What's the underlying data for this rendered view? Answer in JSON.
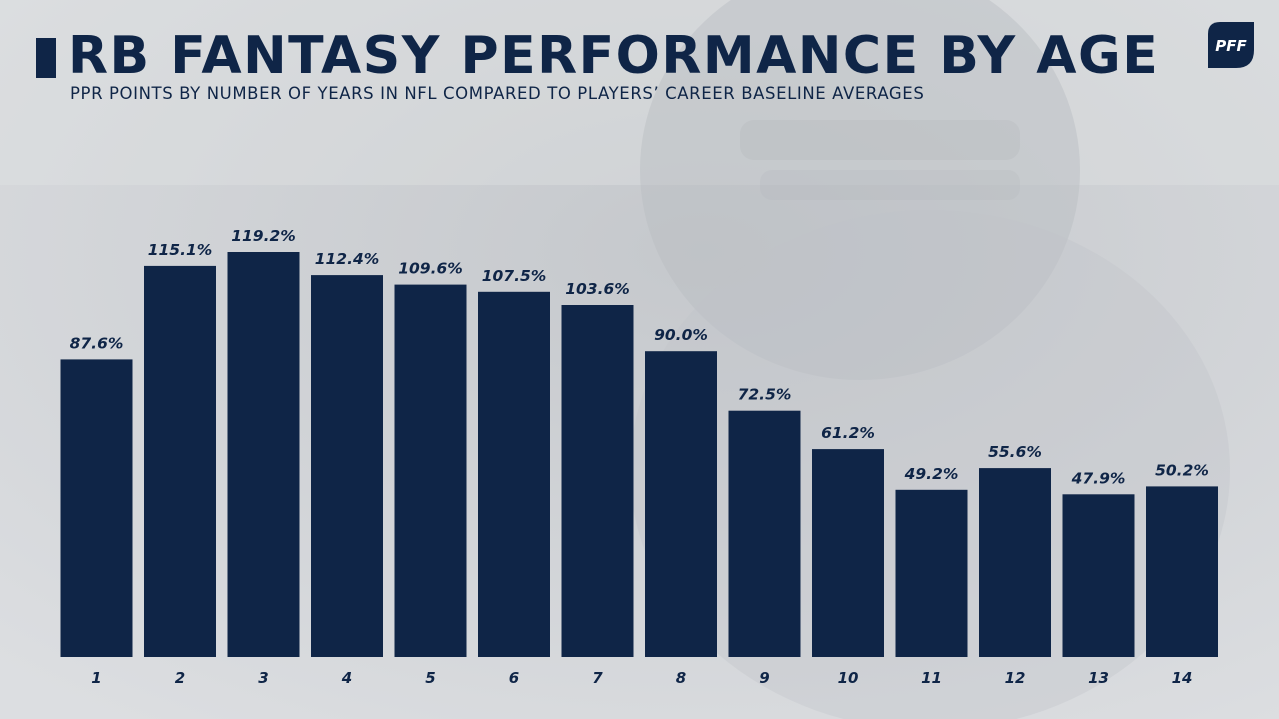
{
  "header": {
    "title": "RB FANTASY PERFORMANCE BY AGE",
    "subtitle": "PPR POINTS BY NUMBER OF YEARS IN NFL COMPARED TO PLAYERS’ CAREER BASELINE AVERAGES",
    "logo_text": "PFF"
  },
  "colors": {
    "bar": "#0f2547",
    "text": "#0f2547",
    "background": "#d3d5d8"
  },
  "chart_data": {
    "type": "bar",
    "title": "RB FANTASY PERFORMANCE BY AGE",
    "subtitle": "PPR POINTS BY NUMBER OF YEARS IN NFL COMPARED TO PLAYERS’ CAREER BASELINE AVERAGES",
    "xlabel": "",
    "ylabel": "",
    "categories": [
      "1",
      "2",
      "3",
      "4",
      "5",
      "6",
      "7",
      "8",
      "9",
      "10",
      "11",
      "12",
      "13",
      "14"
    ],
    "values": [
      87.6,
      115.1,
      119.2,
      112.4,
      109.6,
      107.5,
      103.6,
      90.0,
      72.5,
      61.2,
      49.2,
      55.6,
      47.9,
      50.2
    ],
    "value_labels": [
      "87.6%",
      "115.1%",
      "119.2%",
      "112.4%",
      "109.6%",
      "107.5%",
      "103.6%",
      "90.0%",
      "72.5%",
      "61.2%",
      "49.2%",
      "55.6%",
      "47.9%",
      "50.2%"
    ],
    "ylim": [
      0,
      119.2
    ],
    "grid": false,
    "legend": "none"
  }
}
